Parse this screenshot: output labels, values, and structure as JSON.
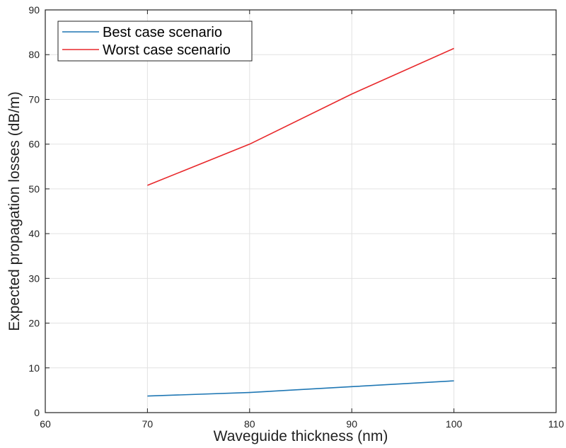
{
  "chart_data": {
    "type": "line",
    "xlabel": "Waveguide thickness (nm)",
    "ylabel": "Expected propagation losses (dB/m)",
    "xlim": [
      60,
      110
    ],
    "ylim": [
      0,
      90
    ],
    "xticks": [
      60,
      70,
      80,
      90,
      100,
      110
    ],
    "yticks": [
      0,
      10,
      20,
      30,
      40,
      50,
      60,
      70,
      80,
      90
    ],
    "x": [
      70,
      80,
      90,
      100
    ],
    "series": [
      {
        "name": "Best case scenario",
        "color": "#1f77b4",
        "values": [
          3.7,
          4.5,
          5.8,
          7.1
        ]
      },
      {
        "name": "Worst case scenario",
        "color": "#e8282b",
        "values": [
          50.8,
          60.0,
          71.2,
          81.4
        ]
      }
    ],
    "grid": true,
    "legend": "top-left"
  }
}
